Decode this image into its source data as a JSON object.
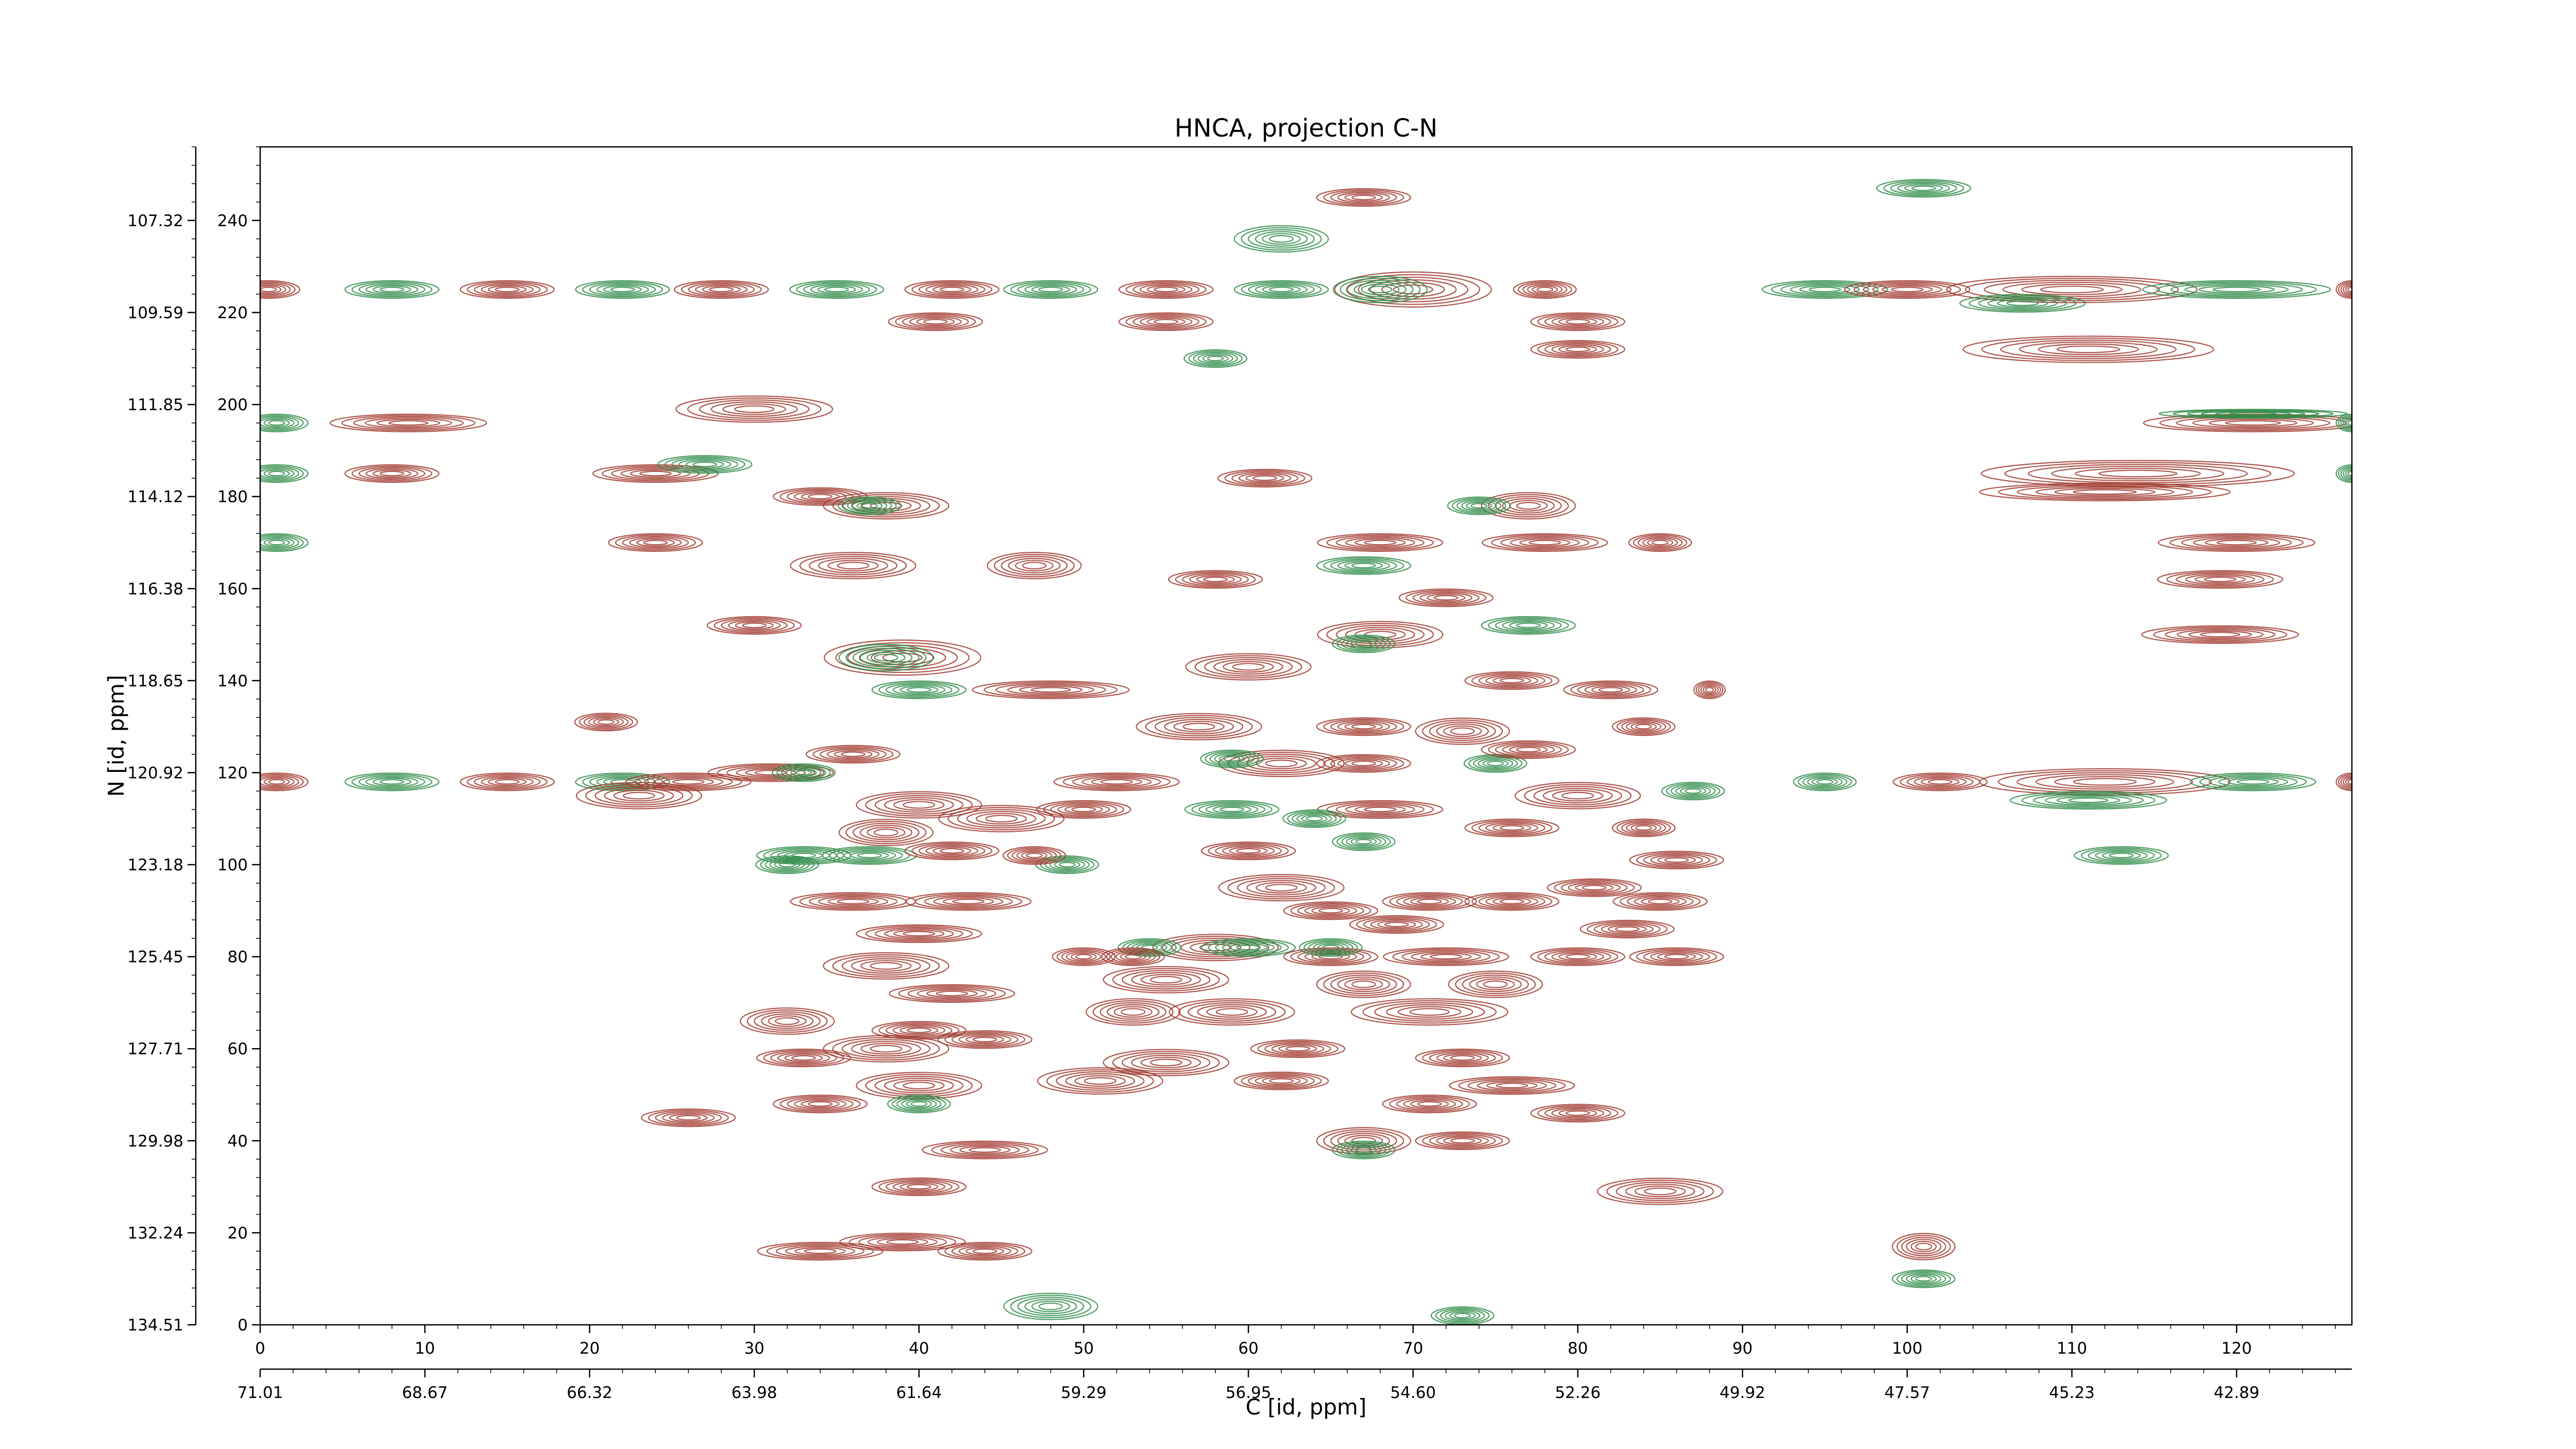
{
  "chart_data": {
    "type": "contour",
    "title": "HNCA, projection C-N",
    "xlabel": "C [id, ppm]",
    "ylabel": "N [id, ppm]",
    "x_index": {
      "range": [
        0,
        127
      ],
      "ticks": [
        0,
        10,
        20,
        30,
        40,
        50,
        60,
        70,
        80,
        90,
        100,
        110,
        120
      ],
      "tick_labels": [
        "0",
        "10",
        "20",
        "30",
        "40",
        "50",
        "60",
        "70",
        "80",
        "90",
        "100",
        "110",
        "120"
      ]
    },
    "x_ppm": {
      "tick_labels": [
        "71.01",
        "68.67",
        "66.32",
        "63.98",
        "61.64",
        "59.29",
        "56.95",
        "54.60",
        "52.26",
        "49.92",
        "47.57",
        "45.23",
        "42.89"
      ]
    },
    "y_index": {
      "range": [
        0,
        256
      ],
      "ticks": [
        0,
        20,
        40,
        60,
        80,
        100,
        120,
        140,
        160,
        180,
        200,
        220,
        240
      ],
      "tick_labels": [
        "0",
        "20",
        "40",
        "60",
        "80",
        "100",
        "120",
        "140",
        "160",
        "180",
        "200",
        "220",
        "240"
      ]
    },
    "y_ppm": {
      "tick_labels": [
        "134.51",
        "132.24",
        "129.98",
        "127.71",
        "125.45",
        "123.18",
        "120.92",
        "118.65",
        "116.38",
        "114.12",
        "111.85",
        "109.59",
        "107.32"
      ]
    },
    "colors": {
      "positive": "#a0372c",
      "negative": "#2e8b46"
    },
    "peaks": [
      [
        0.5,
        225,
        2,
        2,
        "p"
      ],
      [
        8,
        225,
        3,
        2,
        "n"
      ],
      [
        15,
        225,
        3,
        2,
        "p"
      ],
      [
        22,
        225,
        3,
        2,
        "n"
      ],
      [
        28,
        225,
        3,
        2,
        "p"
      ],
      [
        35,
        225,
        3,
        2,
        "n"
      ],
      [
        42,
        225,
        3,
        2,
        "p"
      ],
      [
        48,
        225,
        3,
        2,
        "n"
      ],
      [
        55,
        225,
        3,
        2,
        "p"
      ],
      [
        62,
        225,
        3,
        2,
        "n"
      ],
      [
        70,
        225,
        5,
        4,
        "p"
      ],
      [
        68,
        225,
        3,
        3,
        "n"
      ],
      [
        78,
        225,
        2,
        2,
        "p"
      ],
      [
        95,
        225,
        4,
        2,
        "n"
      ],
      [
        100,
        225,
        4,
        2,
        "p"
      ],
      [
        110,
        225,
        8,
        3,
        "p"
      ],
      [
        107,
        222,
        4,
        2,
        "n"
      ],
      [
        120,
        225,
        6,
        2,
        "n"
      ],
      [
        127,
        225,
        1,
        2,
        "p"
      ],
      [
        41,
        218,
        3,
        2,
        "p"
      ],
      [
        55,
        218,
        3,
        2,
        "p"
      ],
      [
        80,
        218,
        3,
        2,
        "p"
      ],
      [
        80,
        212,
        3,
        2,
        "p"
      ],
      [
        111,
        212,
        8,
        3,
        "p"
      ],
      [
        58,
        210,
        2,
        2,
        "n"
      ],
      [
        62,
        236,
        3,
        3,
        "n"
      ],
      [
        67,
        245,
        3,
        2,
        "p"
      ],
      [
        101,
        247,
        3,
        2,
        "n"
      ],
      [
        1,
        196,
        2,
        2,
        "n"
      ],
      [
        9,
        196,
        5,
        2,
        "p"
      ],
      [
        30,
        199,
        5,
        3,
        "p"
      ],
      [
        121,
        196,
        7,
        2,
        "p"
      ],
      [
        121,
        198,
        6,
        1,
        "n"
      ],
      [
        127,
        196,
        1,
        2,
        "n"
      ],
      [
        1,
        185,
        2,
        2,
        "n"
      ],
      [
        8,
        185,
        3,
        2,
        "p"
      ],
      [
        24,
        185,
        4,
        2,
        "p"
      ],
      [
        27,
        187,
        3,
        2,
        "n"
      ],
      [
        34,
        180,
        3,
        2,
        "p"
      ],
      [
        38,
        178,
        4,
        3,
        "p"
      ],
      [
        37,
        178,
        2,
        2,
        "n"
      ],
      [
        61,
        184,
        3,
        2,
        "p"
      ],
      [
        77,
        178,
        3,
        3,
        "p"
      ],
      [
        74,
        178,
        2,
        2,
        "n"
      ],
      [
        114,
        185,
        10,
        3,
        "p"
      ],
      [
        112,
        181,
        8,
        2,
        "p"
      ],
      [
        127,
        185,
        1,
        2,
        "n"
      ],
      [
        1,
        170,
        2,
        2,
        "n"
      ],
      [
        24,
        170,
        3,
        2,
        "p"
      ],
      [
        36,
        165,
        4,
        3,
        "p"
      ],
      [
        47,
        165,
        3,
        3,
        "p"
      ],
      [
        58,
        162,
        3,
        2,
        "p"
      ],
      [
        68,
        170,
        4,
        2,
        "p"
      ],
      [
        78,
        170,
        4,
        2,
        "p"
      ],
      [
        85,
        170,
        2,
        2,
        "p"
      ],
      [
        67,
        165,
        3,
        2,
        "n"
      ],
      [
        72,
        158,
        3,
        2,
        "p"
      ],
      [
        120,
        170,
        5,
        2,
        "p"
      ],
      [
        119,
        162,
        4,
        2,
        "p"
      ],
      [
        119,
        150,
        5,
        2,
        "p"
      ],
      [
        30,
        152,
        3,
        2,
        "p"
      ],
      [
        39,
        145,
        5,
        4,
        "p"
      ],
      [
        38,
        145,
        3,
        3,
        "n"
      ],
      [
        60,
        143,
        4,
        3,
        "p"
      ],
      [
        68,
        150,
        4,
        3,
        "p"
      ],
      [
        67,
        148,
        2,
        2,
        "n"
      ],
      [
        82,
        138,
        3,
        2,
        "p"
      ],
      [
        88,
        138,
        1,
        2,
        "p"
      ],
      [
        48,
        138,
        5,
        2,
        "p"
      ],
      [
        40,
        138,
        3,
        2,
        "n"
      ],
      [
        1,
        118,
        2,
        2,
        "p"
      ],
      [
        8,
        118,
        3,
        2,
        "n"
      ],
      [
        15,
        118,
        3,
        2,
        "p"
      ],
      [
        22,
        118,
        3,
        2,
        "n"
      ],
      [
        26,
        118,
        4,
        2,
        "p"
      ],
      [
        31,
        120,
        4,
        2,
        "p"
      ],
      [
        36,
        124,
        3,
        2,
        "p"
      ],
      [
        33,
        120,
        2,
        2,
        "n"
      ],
      [
        57,
        130,
        4,
        3,
        "p"
      ],
      [
        62,
        122,
        4,
        3,
        "p"
      ],
      [
        59,
        123,
        2,
        2,
        "n"
      ],
      [
        67,
        130,
        3,
        2,
        "p"
      ],
      [
        67,
        122,
        3,
        2,
        "p"
      ],
      [
        73,
        129,
        3,
        3,
        "p"
      ],
      [
        75,
        122,
        2,
        2,
        "n"
      ],
      [
        77,
        125,
        3,
        2,
        "p"
      ],
      [
        80,
        115,
        4,
        3,
        "p"
      ],
      [
        52,
        118,
        4,
        2,
        "p"
      ],
      [
        50,
        112,
        3,
        2,
        "p"
      ],
      [
        45,
        110,
        4,
        3,
        "p"
      ],
      [
        40,
        113,
        4,
        3,
        "p"
      ],
      [
        38,
        107,
        3,
        3,
        "p"
      ],
      [
        37,
        102,
        3,
        2,
        "n"
      ],
      [
        42,
        103,
        3,
        2,
        "p"
      ],
      [
        49,
        100,
        2,
        2,
        "n"
      ],
      [
        47,
        102,
        2,
        2,
        "p"
      ],
      [
        43,
        92,
        4,
        2,
        "p"
      ],
      [
        36,
        92,
        4,
        2,
        "p"
      ],
      [
        59,
        112,
        3,
        2,
        "n"
      ],
      [
        68,
        112,
        4,
        2,
        "p"
      ],
      [
        64,
        110,
        2,
        2,
        "n"
      ],
      [
        67,
        105,
        2,
        2,
        "n"
      ],
      [
        60,
        103,
        3,
        2,
        "p"
      ],
      [
        76,
        108,
        3,
        2,
        "p"
      ],
      [
        84,
        108,
        2,
        2,
        "p"
      ],
      [
        81,
        95,
        3,
        2,
        "p"
      ],
      [
        86,
        101,
        3,
        2,
        "p"
      ],
      [
        85,
        92,
        3,
        2,
        "p"
      ],
      [
        76,
        92,
        3,
        2,
        "p"
      ],
      [
        71,
        92,
        3,
        2,
        "p"
      ],
      [
        69,
        87,
        3,
        2,
        "p"
      ],
      [
        62,
        95,
        4,
        3,
        "p"
      ],
      [
        65,
        90,
        3,
        2,
        "p"
      ],
      [
        58,
        82,
        4,
        3,
        "p"
      ],
      [
        65,
        80,
        3,
        2,
        "p"
      ],
      [
        54,
        82,
        2,
        2,
        "n"
      ],
      [
        60,
        82,
        3,
        2,
        "n"
      ],
      [
        65,
        82,
        2,
        2,
        "n"
      ],
      [
        53,
        80,
        2,
        2,
        "p"
      ],
      [
        50,
        80,
        2,
        2,
        "p"
      ],
      [
        72,
        80,
        4,
        2,
        "p"
      ],
      [
        80,
        80,
        3,
        2,
        "p"
      ],
      [
        86,
        80,
        3,
        2,
        "p"
      ],
      [
        83,
        86,
        3,
        2,
        "p"
      ],
      [
        40,
        85,
        4,
        2,
        "p"
      ],
      [
        38,
        78,
        4,
        3,
        "p"
      ],
      [
        42,
        72,
        4,
        2,
        "p"
      ],
      [
        55,
        75,
        4,
        3,
        "p"
      ],
      [
        53,
        68,
        3,
        3,
        "p"
      ],
      [
        59,
        68,
        4,
        3,
        "p"
      ],
      [
        67,
        74,
        3,
        3,
        "p"
      ],
      [
        71,
        68,
        5,
        3,
        "p"
      ],
      [
        75,
        74,
        3,
        3,
        "p"
      ],
      [
        32,
        66,
        3,
        3,
        "p"
      ],
      [
        33,
        58,
        3,
        2,
        "p"
      ],
      [
        38,
        60,
        4,
        3,
        "p"
      ],
      [
        40,
        64,
        3,
        2,
        "p"
      ],
      [
        44,
        62,
        3,
        2,
        "p"
      ],
      [
        40,
        52,
        4,
        3,
        "p"
      ],
      [
        40,
        48,
        2,
        2,
        "n"
      ],
      [
        34,
        48,
        3,
        2,
        "p"
      ],
      [
        26,
        45,
        3,
        2,
        "p"
      ],
      [
        44,
        38,
        4,
        2,
        "p"
      ],
      [
        51,
        53,
        4,
        3,
        "p"
      ],
      [
        55,
        57,
        4,
        3,
        "p"
      ],
      [
        63,
        60,
        3,
        2,
        "p"
      ],
      [
        73,
        58,
        3,
        2,
        "p"
      ],
      [
        62,
        53,
        3,
        2,
        "p"
      ],
      [
        71,
        48,
        3,
        2,
        "p"
      ],
      [
        76,
        52,
        4,
        2,
        "p"
      ],
      [
        80,
        46,
        3,
        2,
        "p"
      ],
      [
        67,
        40,
        3,
        3,
        "p"
      ],
      [
        73,
        40,
        3,
        2,
        "p"
      ],
      [
        67,
        38,
        2,
        2,
        "n"
      ],
      [
        40,
        30,
        3,
        2,
        "p"
      ],
      [
        34,
        16,
        4,
        2,
        "p"
      ],
      [
        39,
        18,
        4,
        2,
        "p"
      ],
      [
        44,
        16,
        3,
        2,
        "p"
      ],
      [
        85,
        29,
        4,
        3,
        "p"
      ],
      [
        48,
        4,
        3,
        3,
        "n"
      ],
      [
        73,
        2,
        2,
        2,
        "n"
      ],
      [
        101,
        17,
        2,
        3,
        "p"
      ],
      [
        101,
        10,
        2,
        2,
        "n"
      ],
      [
        113,
        102,
        3,
        2,
        "n"
      ],
      [
        23,
        115,
        4,
        3,
        "p"
      ],
      [
        33,
        102,
        3,
        2,
        "n"
      ],
      [
        32,
        100,
        2,
        2,
        "n"
      ],
      [
        87,
        116,
        2,
        2,
        "n"
      ],
      [
        77,
        152,
        3,
        2,
        "n"
      ],
      [
        76,
        140,
        3,
        2,
        "p"
      ],
      [
        84,
        130,
        2,
        2,
        "p"
      ],
      [
        21,
        131,
        2,
        2,
        "p"
      ],
      [
        95,
        118,
        2,
        2,
        "n"
      ],
      [
        102,
        118,
        3,
        2,
        "p"
      ],
      [
        112,
        118,
        8,
        3,
        "p"
      ],
      [
        111,
        114,
        5,
        2,
        "n"
      ],
      [
        121,
        118,
        4,
        2,
        "n"
      ],
      [
        127,
        118,
        1,
        2,
        "p"
      ]
    ]
  }
}
